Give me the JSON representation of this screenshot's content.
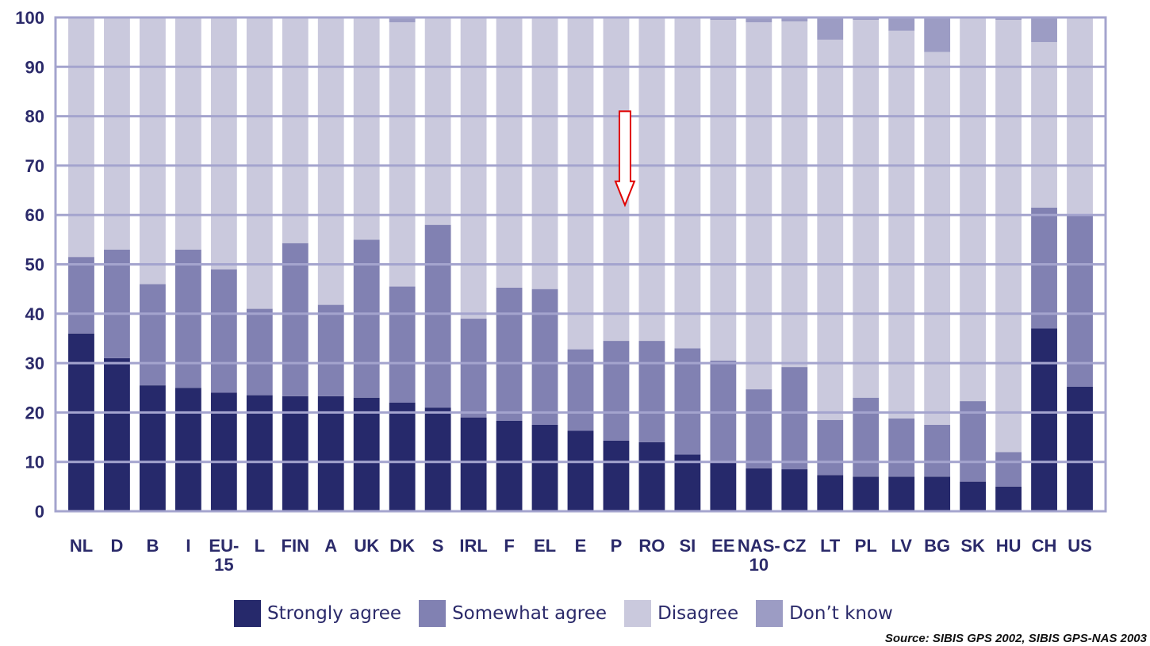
{
  "chart_data": {
    "type": "bar",
    "stacked": true,
    "categories": [
      "NL",
      "D",
      "B",
      "I",
      "EU-15",
      "L",
      "FIN",
      "A",
      "UK",
      "DK",
      "S",
      "IRL",
      "F",
      "EL",
      "E",
      "P",
      "RO",
      "SI",
      "EE",
      "NAS-10",
      "CZ",
      "LT",
      "PL",
      "LV",
      "BG",
      "SK",
      "HU",
      "CH",
      "US"
    ],
    "category_label_lines": [
      [
        "NL"
      ],
      [
        "D"
      ],
      [
        "B"
      ],
      [
        "I"
      ],
      [
        "EU-",
        "15"
      ],
      [
        "L"
      ],
      [
        "FIN"
      ],
      [
        "A"
      ],
      [
        "UK"
      ],
      [
        "DK"
      ],
      [
        "S"
      ],
      [
        "IRL"
      ],
      [
        "F"
      ],
      [
        "EL"
      ],
      [
        "E"
      ],
      [
        "P"
      ],
      [
        "RO"
      ],
      [
        "SI"
      ],
      [
        "EE"
      ],
      [
        "NAS-",
        "10"
      ],
      [
        "CZ"
      ],
      [
        "LT"
      ],
      [
        "PL"
      ],
      [
        "LV"
      ],
      [
        "BG"
      ],
      [
        "SK"
      ],
      [
        "HU"
      ],
      [
        "CH"
      ],
      [
        "US"
      ]
    ],
    "series": [
      {
        "name": "Strongly agree",
        "color": "#26296b",
        "values": [
          36,
          31,
          25.5,
          25,
          24,
          23.5,
          23.3,
          23.3,
          23,
          22,
          21,
          19,
          18.3,
          17.5,
          16.3,
          14.3,
          14,
          11.5,
          10,
          8.7,
          8.5,
          7.3,
          7,
          7,
          7,
          6,
          5,
          37,
          25.2
        ]
      },
      {
        "name": "Somewhat agree",
        "color": "#8181b2",
        "values": [
          15.5,
          22,
          20.5,
          28,
          25,
          17.5,
          31,
          18.5,
          32,
          23.5,
          37,
          20,
          27,
          27.5,
          16.5,
          20.2,
          20.5,
          21.5,
          20.5,
          16,
          20.7,
          11.2,
          16,
          11.8,
          10.5,
          16.3,
          7,
          24.5,
          35
        ]
      },
      {
        "name": "Disagree",
        "color": "#cac9dd",
        "values": [
          48.5,
          47,
          54,
          47,
          51,
          59,
          45.7,
          58.2,
          45,
          53.5,
          42,
          61,
          54.7,
          55,
          67.2,
          65.5,
          65.5,
          67,
          69,
          74.3,
          70,
          77,
          76.5,
          78.5,
          75.5,
          77.7,
          87.5,
          33.5,
          39.8
        ]
      },
      {
        "name": "Don't know",
        "color": "#9c9cc4",
        "values": [
          0,
          0,
          0,
          0,
          0,
          0,
          0,
          0,
          0,
          1,
          0,
          0,
          0,
          0,
          0,
          0,
          0,
          0,
          0.5,
          1,
          0.8,
          4.5,
          0.5,
          2.7,
          7,
          0,
          0.5,
          5,
          0
        ]
      }
    ],
    "legend_labels": [
      "Strongly agree",
      "Somewhat agree",
      "Disagree",
      "Don’t know"
    ],
    "yticks": [
      0,
      10,
      20,
      30,
      40,
      50,
      60,
      70,
      80,
      90,
      100
    ],
    "ylim": [
      0,
      100
    ],
    "grid": true,
    "legend_position": "bottom",
    "annotation": {
      "type": "arrow-down",
      "category": "P",
      "from": 81,
      "to": 62,
      "color": "#e00000"
    },
    "colors": {
      "axis": "#a4a4ce",
      "tick_text": "#2b2a6a",
      "category_text": "#2b2a6a"
    }
  },
  "source_text": "Source: SIBIS GPS 2002, SIBIS GPS-NAS 2003"
}
